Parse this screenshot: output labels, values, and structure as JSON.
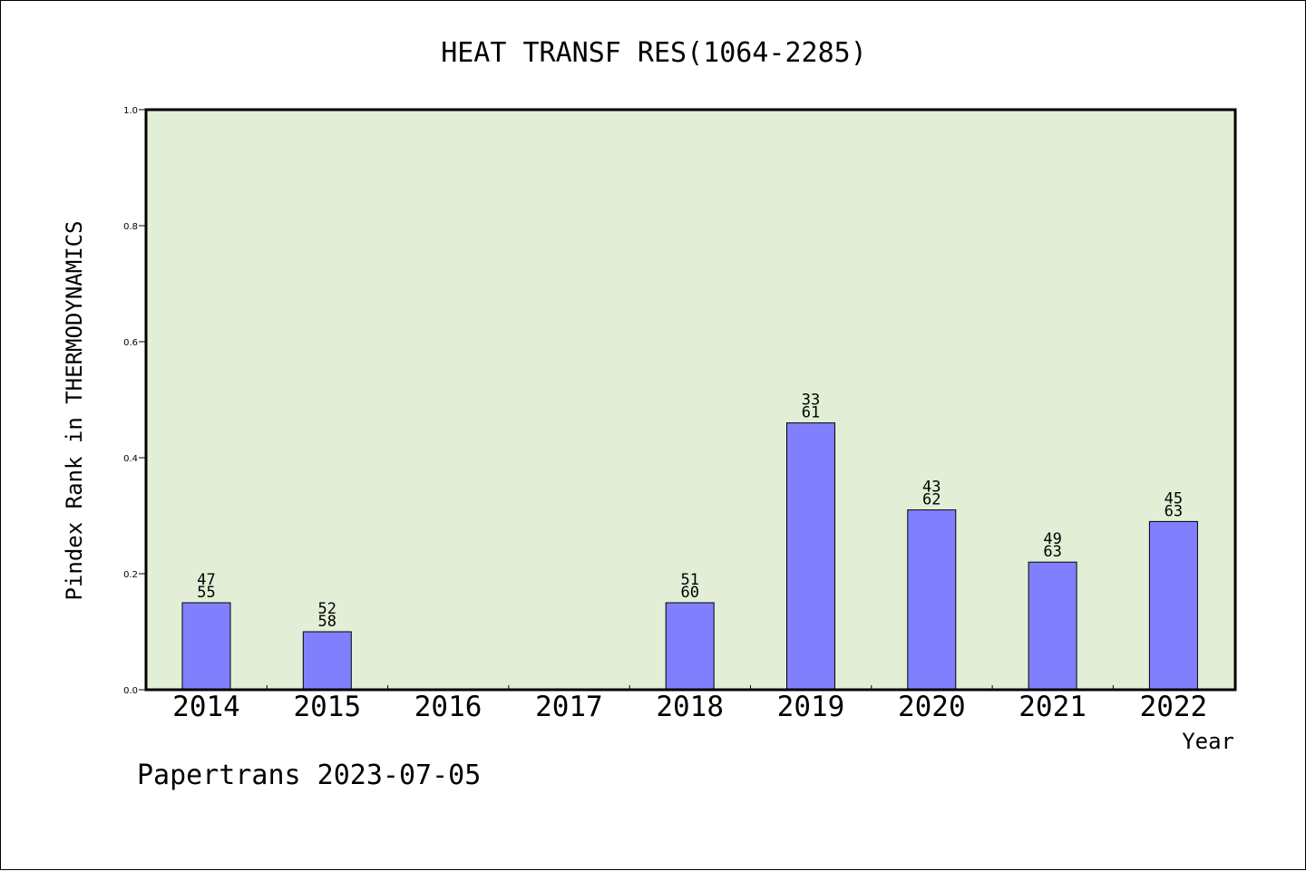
{
  "chart_data": {
    "type": "bar",
    "title": "HEAT TRANSF RES(1064-2285)",
    "xlabel": "Year",
    "ylabel": "Pindex Rank in THERMODYNAMICS",
    "categories": [
      "2014",
      "2015",
      "2016",
      "2017",
      "2018",
      "2019",
      "2020",
      "2021",
      "2022"
    ],
    "values": [
      0.15,
      0.1,
      null,
      null,
      0.15,
      0.46,
      0.31,
      0.22,
      0.29
    ],
    "labels_top": [
      "47",
      "52",
      "",
      "",
      "51",
      "33",
      "43",
      "49",
      "45"
    ],
    "labels_bottom": [
      "55",
      "58",
      "",
      "",
      "60",
      "61",
      "62",
      "63",
      "63"
    ],
    "ylim": [
      0.0,
      1.0
    ],
    "yticks": [
      "0.0",
      "0.2",
      "0.4",
      "0.6",
      "0.8",
      "1.0"
    ],
    "grid": false,
    "legend": "none",
    "colors": {
      "plot_background": "#e2efd6",
      "bar_fill": "#8080ff",
      "bar_stroke": "#000000"
    }
  },
  "footer": {
    "credit": "Papertrans 2023-07-05"
  }
}
